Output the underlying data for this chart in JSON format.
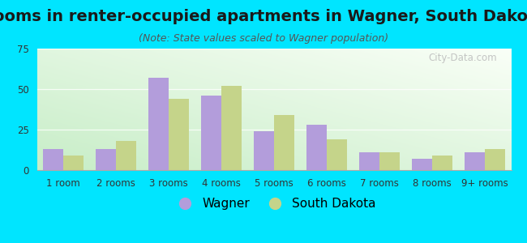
{
  "title": "Rooms in renter-occupied apartments in Wagner, South Dakota",
  "subtitle": "(Note: State values scaled to Wagner population)",
  "categories": [
    "1 room",
    "2 rooms",
    "3 rooms",
    "4 rooms",
    "5 rooms",
    "6 rooms",
    "7 rooms",
    "8 rooms",
    "9+ rooms"
  ],
  "wagner_values": [
    13,
    13,
    57,
    46,
    24,
    28,
    11,
    7,
    11
  ],
  "sd_values": [
    9,
    18,
    44,
    52,
    34,
    19,
    11,
    9,
    13
  ],
  "wagner_color": "#b39ddb",
  "sd_color": "#c5d48a",
  "background_color": "#00e5ff",
  "ylim": [
    0,
    75
  ],
  "yticks": [
    0,
    25,
    50,
    75
  ],
  "watermark": "City-Data.com",
  "legend_wagner": "Wagner",
  "legend_sd": "South Dakota",
  "title_fontsize": 14,
  "subtitle_fontsize": 9,
  "tick_fontsize": 8.5,
  "legend_fontsize": 11
}
